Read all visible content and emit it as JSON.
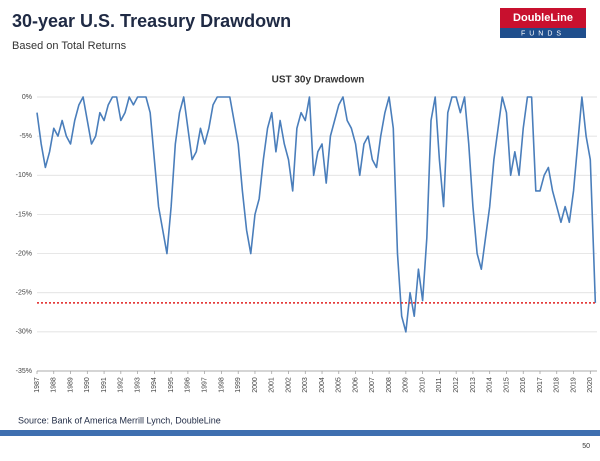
{
  "header": {
    "title": "30-year U.S. Treasury Drawdown",
    "subtitle": "Based on Total Returns"
  },
  "logo": {
    "name": "DoubleLine",
    "sub": "FUNDS"
  },
  "chart_data": {
    "type": "line",
    "title": "UST 30y Drawdown",
    "x": [
      1987,
      1987.25,
      1987.5,
      1987.75,
      1988,
      1988.25,
      1988.5,
      1988.75,
      1989,
      1989.25,
      1989.5,
      1989.75,
      1990,
      1990.25,
      1990.5,
      1990.75,
      1991,
      1991.25,
      1991.5,
      1991.75,
      1992,
      1992.25,
      1992.5,
      1992.75,
      1993,
      1993.25,
      1993.5,
      1993.75,
      1994,
      1994.25,
      1994.5,
      1994.75,
      1995,
      1995.25,
      1995.5,
      1995.75,
      1996,
      1996.25,
      1996.5,
      1996.75,
      1997,
      1997.25,
      1997.5,
      1997.75,
      1998,
      1998.25,
      1998.5,
      1998.75,
      1999,
      1999.25,
      1999.5,
      1999.75,
      2000,
      2000.25,
      2000.5,
      2000.75,
      2001,
      2001.25,
      2001.5,
      2001.75,
      2002,
      2002.25,
      2002.5,
      2002.75,
      2003,
      2003.25,
      2003.5,
      2003.75,
      2004,
      2004.25,
      2004.5,
      2004.75,
      2005,
      2005.25,
      2005.5,
      2005.75,
      2006,
      2006.25,
      2006.5,
      2006.75,
      2007,
      2007.25,
      2007.5,
      2007.75,
      2008,
      2008.25,
      2008.5,
      2008.75,
      2009,
      2009.25,
      2009.5,
      2009.75,
      2010,
      2010.25,
      2010.5,
      2010.75,
      2011,
      2011.25,
      2011.5,
      2011.75,
      2012,
      2012.25,
      2012.5,
      2012.75,
      2013,
      2013.25,
      2013.5,
      2013.75,
      2014,
      2014.25,
      2014.5,
      2014.75,
      2015,
      2015.25,
      2015.5,
      2015.75,
      2016,
      2016.25,
      2016.5,
      2016.75,
      2017,
      2017.25,
      2017.5,
      2017.75,
      2018,
      2018.25,
      2018.5,
      2018.75,
      2019,
      2019.25,
      2019.5,
      2019.75,
      2020,
      2020.1,
      2020.2,
      2020.3
    ],
    "series": [
      {
        "name": "UST 30y Drawdown",
        "color": "#4a7ebb",
        "values": [
          -2,
          -6,
          -9,
          -7,
          -4,
          -5,
          -3,
          -5,
          -6,
          -3,
          -1,
          0,
          -3,
          -6,
          -5,
          -2,
          -3,
          -1,
          0,
          0,
          -3,
          -2,
          0,
          -1,
          0,
          0,
          0,
          -2,
          -8,
          -14,
          -17,
          -20,
          -14,
          -6,
          -2,
          0,
          -4,
          -8,
          -7,
          -4,
          -6,
          -4,
          -1,
          0,
          0,
          0,
          0,
          -3,
          -6,
          -12,
          -17,
          -20,
          -15,
          -13,
          -8,
          -4,
          -2,
          -7,
          -3,
          -6,
          -8,
          -12,
          -4,
          -2,
          -3,
          0,
          -10,
          -7,
          -6,
          -11,
          -5,
          -3,
          -1,
          0,
          -3,
          -4,
          -6,
          -10,
          -6,
          -5,
          -8,
          -9,
          -5,
          -2,
          0,
          -4,
          -20,
          -28,
          -30,
          -25,
          -28,
          -22,
          -26,
          -18,
          -3,
          0,
          -8,
          -14,
          -2,
          0,
          0,
          -2,
          0,
          -6,
          -14,
          -20,
          -22,
          -18,
          -14,
          -8,
          -4,
          0,
          -2,
          -10,
          -7,
          -10,
          -4,
          0,
          0,
          -12,
          -12,
          -10,
          -9,
          -12,
          -14,
          -16,
          -14,
          -16,
          -12,
          -6,
          0,
          -5,
          -8,
          -14,
          -20,
          -26.3
        ]
      }
    ],
    "ref_line": {
      "value": -26.3,
      "color": "#e02020"
    },
    "xlim": [
      1987,
      2020.4
    ],
    "xticks": [
      1987,
      1988,
      1989,
      1990,
      1991,
      1992,
      1993,
      1994,
      1995,
      1996,
      1997,
      1998,
      1999,
      2000,
      2001,
      2002,
      2003,
      2004,
      2005,
      2006,
      2007,
      2008,
      2009,
      2010,
      2011,
      2012,
      2013,
      2014,
      2015,
      2016,
      2017,
      2018,
      2019,
      2020
    ],
    "ylim": [
      -35,
      0
    ],
    "yticks": [
      {
        "value": 0,
        "label": "0%"
      },
      {
        "value": -5,
        "label": "-5%"
      },
      {
        "value": -10,
        "label": "-10%"
      },
      {
        "value": -15,
        "label": "-15%"
      },
      {
        "value": -20,
        "label": "-20%"
      },
      {
        "value": -25,
        "label": "-25%"
      },
      {
        "value": -30,
        "label": "-30%"
      },
      {
        "value": -35,
        "label": "-35%"
      }
    ],
    "grid": true
  },
  "footer": {
    "source": "Source: Bank of America Merrill Lynch, DoubleLine",
    "page": "50"
  }
}
